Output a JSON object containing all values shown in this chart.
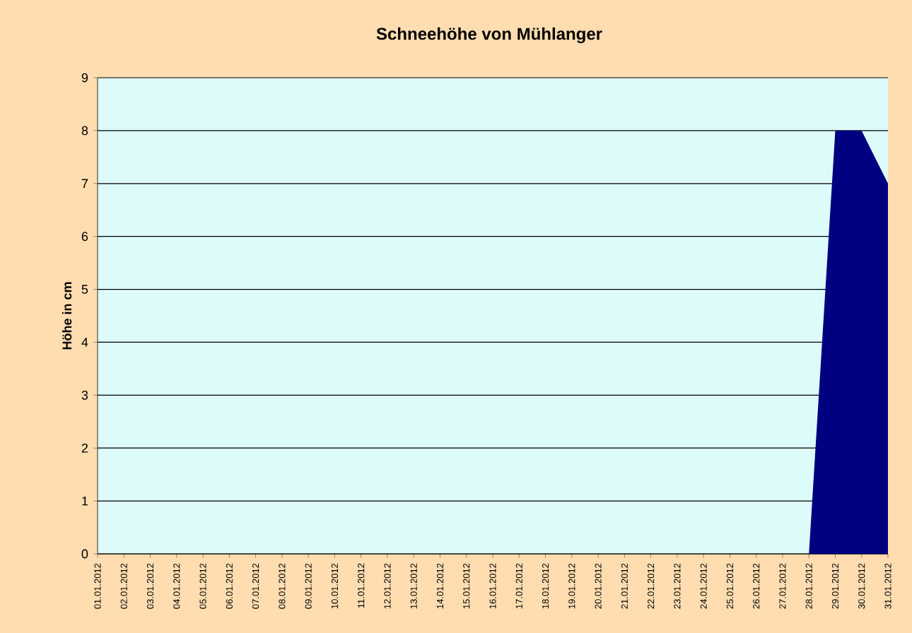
{
  "chart_data": {
    "type": "area",
    "title": "Schneehöhe von Mühlanger",
    "ylabel": "Höhe in cm",
    "categories": [
      "01.01.2012",
      "02.01.2012",
      "03.01.2012",
      "04.01.2012",
      "05.01.2012",
      "06.01.2012",
      "07.01.2012",
      "08.01.2012",
      "09.01.2012",
      "10.01.2012",
      "11.01.2012",
      "12.01.2012",
      "13.01.2012",
      "14.01.2012",
      "15.01.2012",
      "16.01.2012",
      "17.01.2012",
      "18.01.2012",
      "19.01.2012",
      "20.01.2012",
      "21.01.2012",
      "22.01.2012",
      "23.01.2012",
      "24.01.2012",
      "25.01.2012",
      "26.01.2012",
      "27.01.2012",
      "28.01.2012",
      "29.01.2012",
      "30.01.2012",
      "31.01.2012"
    ],
    "values": [
      0,
      0,
      0,
      0,
      0,
      0,
      0,
      0,
      0,
      0,
      0,
      0,
      0,
      0,
      0,
      0,
      0,
      0,
      0,
      0,
      0,
      0,
      0,
      0,
      0,
      0,
      0,
      0,
      8,
      8,
      7
    ],
    "color": "#000080",
    "ylim": [
      0,
      9
    ],
    "yticks": [
      0,
      1,
      2,
      3,
      4,
      5,
      6,
      7,
      8,
      9
    ],
    "grid": "y"
  }
}
